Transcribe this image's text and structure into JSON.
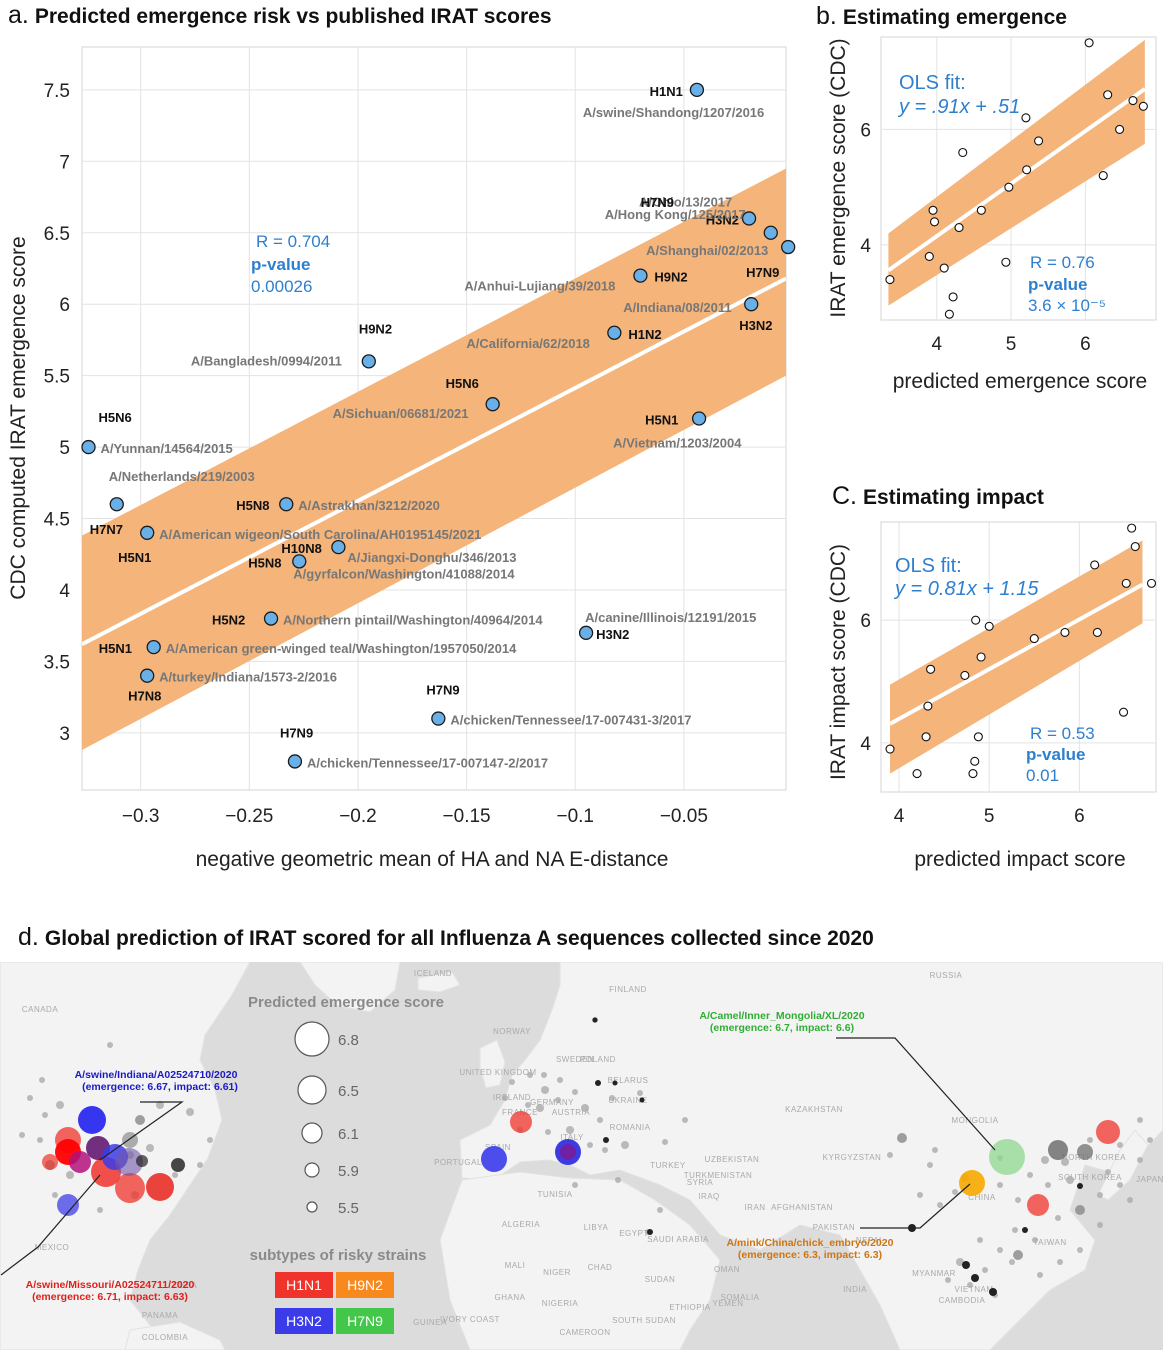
{
  "panel_a": {
    "letter": "a.",
    "title": "Predicted emergence risk vs published IRAT scores",
    "stats": {
      "r": "R = 0.704",
      "pvalue_label": "p-value",
      "pvalue": "0.00026"
    }
  },
  "panel_b": {
    "letter": "b.",
    "title": "Estimating emergence",
    "ols_title": "OLS fit:",
    "ols_eq": "y = .91x + .51",
    "stats": {
      "r": "R = 0.76",
      "pvalue_label": "p-value",
      "pvalue": "3.6 × 10⁻⁵"
    }
  },
  "panel_c": {
    "letter": "C.",
    "title": "Estimating impact",
    "ols_title": "OLS fit:",
    "ols_eq": "y = 0.81x + 1.15",
    "stats": {
      "r": "R = 0.53",
      "pvalue_label": "p-value",
      "pvalue": "0.01"
    }
  },
  "panel_d": {
    "letter": "d.",
    "title": "Global prediction of IRAT scored for all Influenza A sequences collected since 2020",
    "size_legend_title": "Predicted emergence score",
    "size_legend": [
      "6.8",
      "6.5",
      "6.1",
      "5.9",
      "5.5"
    ],
    "subtype_legend_title": "subtypes of risky strains",
    "subtypes": [
      {
        "name": "H1N1",
        "color": "#f0332b"
      },
      {
        "name": "H9N2",
        "color": "#f7891e"
      },
      {
        "name": "H3N2",
        "color": "#3b3bea"
      },
      {
        "name": "H7N9",
        "color": "#43c64a"
      }
    ],
    "annotations": [
      {
        "name": "A/swine/Indiana/A02524710/2020",
        "detail": "(emergence: 6.67, impact: 6.61)",
        "color": "#1a1ac8"
      },
      {
        "name": "A/swine/Missouri/A02524711/2020",
        "detail": "(emergence: 6.71, impact: 6.63)",
        "color": "#e0201a"
      },
      {
        "name": "A/Camel/Inner_Mongolia/XL/2020",
        "detail": "(emergence: 6.7, impact: 6.6)",
        "color": "#2fae34"
      },
      {
        "name": "A/mink/China/chick_embryo/2020",
        "detail": "(emergence: 6.3, impact: 6.3)",
        "color": "#d07410"
      }
    ],
    "countries": [
      "CANADA",
      "ICELAND",
      "FINLAND",
      "SWEDEN",
      "NORWAY",
      "RUSSIA",
      "UNITED KINGDOM",
      "IRELAND",
      "POLAND",
      "BELARUS",
      "UKRAINE",
      "FRANCE",
      "GERMANY",
      "AUSTRIA",
      "ROMANIA",
      "SPAIN",
      "PORTUGAL",
      "ITALY",
      "TURKEY",
      "KAZAKHSTAN",
      "MONGOLIA",
      "UZBEKISTAN",
      "TURKMENISTAN",
      "KYRGYZSTAN",
      "TUNISIA",
      "SYRIA",
      "IRAQ",
      "IRAN",
      "AFGHANISTAN",
      "PAKISTAN",
      "CHINA",
      "NORTH KOREA",
      "SOUTH KOREA",
      "JAPAN",
      "NEPAL",
      "ALGERIA",
      "LIBYA",
      "EGYPT",
      "SAUDI ARABIA",
      "OMAN",
      "INDIA",
      "MYANMAR",
      "TAIWAN",
      "VIETNAM",
      "CAMBODIA",
      "MEXICO",
      "SUDAN",
      "ETHIOPIA",
      "SOMALIA",
      "SOUTH SUDAN",
      "IVORY COAST",
      "CAMEROON",
      "GUINEA",
      "COLOMBIA",
      "PANAMA",
      "CUBA",
      "MALI",
      "NIGER",
      "NIGERIA",
      "CHAD",
      "YEMEN",
      "GHANA"
    ]
  },
  "chart_data": [
    {
      "panel": "a",
      "type": "scatter",
      "title": "Predicted emergence risk vs published IRAT scores",
      "xlabel": "negative geometric mean of HA and NA E-distance",
      "ylabel": "CDC computed IRAT emergence score",
      "xlim": [
        -0.327,
        -0.003
      ],
      "ylim": [
        2.6,
        7.8
      ],
      "xticks": [
        -0.3,
        -0.25,
        -0.2,
        -0.15,
        -0.1,
        -0.05
      ],
      "xtick_labels": [
        "−0.3",
        "−0.25",
        "−0.2",
        "−0.15",
        "−0.1",
        "−0.05"
      ],
      "yticks": [
        3,
        3.5,
        4,
        4.5,
        5,
        5.5,
        6,
        6.5,
        7,
        7.5
      ],
      "ytick_labels": [
        "3",
        "3.5",
        "4",
        "4.5",
        "5",
        "5.5",
        "6",
        "6.5",
        "7",
        "7.5"
      ],
      "grid": true,
      "fit": {
        "x": [
          -0.327,
          -0.003
        ],
        "y": [
          3.62,
          6.18
        ]
      },
      "band": {
        "x": [
          -0.327,
          -0.003
        ],
        "upper": [
          4.38,
          6.95
        ],
        "lower": [
          2.88,
          5.5
        ]
      },
      "points": [
        {
          "x": -0.044,
          "y": 7.5,
          "subtype": "H1N1",
          "strain": "A/swine/Shandong/1207/2016"
        },
        {
          "x": -0.02,
          "y": 6.6,
          "subtype": "H3N2",
          "strain": "A/Ohio/13/2017"
        },
        {
          "x": -0.01,
          "y": 6.5,
          "subtype": "H7N9",
          "strain": "A/Hong Kong/125/2017"
        },
        {
          "x": -0.002,
          "y": 6.4,
          "subtype": "H7N9",
          "strain": "A/Shanghai/02/2013"
        },
        {
          "x": -0.07,
          "y": 6.2,
          "subtype": "H9N2",
          "strain": "A/Anhui-Lujiang/39/2018"
        },
        {
          "x": -0.019,
          "y": 6.0,
          "subtype": "H3N2",
          "strain": "A/Indiana/08/2011"
        },
        {
          "x": -0.082,
          "y": 5.8,
          "subtype": "H1N2",
          "strain": "A/California/62/2018"
        },
        {
          "x": -0.195,
          "y": 5.6,
          "subtype": "H9N2",
          "strain": "A/Bangladesh/0994/2011"
        },
        {
          "x": -0.138,
          "y": 5.3,
          "subtype": "H5N6",
          "strain": "A/Sichuan/06681/2021"
        },
        {
          "x": -0.043,
          "y": 5.2,
          "subtype": "H5N1",
          "strain": "A/Vietnam/1203/2004"
        },
        {
          "x": -0.324,
          "y": 5.0,
          "subtype": "H5N6",
          "strain": "A/Yunnan/14564/2015"
        },
        {
          "x": -0.311,
          "y": 4.6,
          "subtype": "H7N7",
          "strain": "A/Netherlands/219/2003"
        },
        {
          "x": -0.233,
          "y": 4.6,
          "subtype": "H5N8",
          "strain": "A/Astrakhan/3212/2020"
        },
        {
          "x": -0.297,
          "y": 4.4,
          "subtype": "H5N1",
          "strain": "A/American wigeon/South Carolina/AH0195145/2021"
        },
        {
          "x": -0.209,
          "y": 4.3,
          "subtype": "H10N8",
          "strain": "A/Jiangxi-Donghu/346/2013"
        },
        {
          "x": -0.227,
          "y": 4.2,
          "subtype": "H5N8",
          "strain": "A/gyrfalcon/Washington/41088/2014"
        },
        {
          "x": -0.24,
          "y": 3.8,
          "subtype": "H5N2",
          "strain": "A/Northern pintail/Washington/40964/2014"
        },
        {
          "x": -0.095,
          "y": 3.7,
          "subtype": "H3N2",
          "strain": "A/canine/Illinois/12191/2015"
        },
        {
          "x": -0.294,
          "y": 3.6,
          "subtype": "H5N1",
          "strain": "A/American green-winged teal/Washington/1957050/2014"
        },
        {
          "x": -0.297,
          "y": 3.4,
          "subtype": "H7N8",
          "strain": "A/turkey/Indiana/1573-2/2016"
        },
        {
          "x": -0.163,
          "y": 3.1,
          "subtype": "H7N9",
          "strain": "A/chicken/Tennessee/17-007431-3/2017"
        },
        {
          "x": -0.229,
          "y": 2.8,
          "subtype": "H7N9",
          "strain": "A/chicken/Tennessee/17-007147-2/2017"
        }
      ]
    },
    {
      "panel": "b",
      "type": "scatter",
      "title": "Estimating emergence",
      "xlabel": "predicted emergence score",
      "ylabel": "IRAT emergence score (CDC)",
      "xlim": [
        3.25,
        6.95
      ],
      "ylim": [
        2.7,
        7.6
      ],
      "xticks": [
        4,
        5,
        6
      ],
      "yticks": [
        4,
        6
      ],
      "grid": true,
      "fit": {
        "x": [
          3.35,
          6.8
        ],
        "y": [
          3.56,
          6.7
        ]
      },
      "band": {
        "x": [
          3.35,
          6.8
        ],
        "upper": [
          4.2,
          7.55
        ],
        "lower": [
          2.95,
          5.75
        ]
      },
      "x": [
        3.37,
        4.35,
        3.95,
        3.9,
        3.97,
        4.3,
        4.6,
        4.93,
        4.97,
        5.2,
        5.21,
        5.37,
        6.05,
        6.24,
        6.3,
        6.46,
        6.64,
        6.78,
        4.22,
        4.1,
        4.17
      ],
      "y": [
        3.4,
        5.6,
        4.6,
        3.8,
        4.4,
        4.3,
        4.6,
        3.7,
        5.0,
        6.2,
        5.3,
        5.8,
        7.5,
        5.2,
        6.6,
        6.0,
        6.5,
        6.4,
        3.1,
        3.6,
        2.8
      ]
    },
    {
      "panel": "c",
      "type": "scatter",
      "title": "Estimating impact",
      "xlabel": "predicted impact score",
      "ylabel": "IRAT impact score (CDC)",
      "xlim": [
        3.8,
        6.85
      ],
      "ylim": [
        3.2,
        7.6
      ],
      "xticks": [
        4,
        5,
        6
      ],
      "yticks": [
        4,
        6
      ],
      "grid": true,
      "fit": {
        "x": [
          3.9,
          6.7
        ],
        "y": [
          4.31,
          6.58
        ]
      },
      "band": {
        "x": [
          3.9,
          6.7
        ],
        "upper": [
          4.95,
          7.3
        ],
        "lower": [
          3.5,
          5.95
        ]
      },
      "x": [
        3.9,
        4.2,
        4.3,
        4.35,
        4.32,
        4.73,
        4.82,
        4.84,
        4.88,
        4.85,
        4.91,
        5.0,
        5.5,
        5.84,
        6.2,
        6.17,
        6.52,
        6.58,
        6.62,
        6.49,
        6.8
      ],
      "y": [
        3.9,
        3.5,
        4.1,
        5.2,
        4.6,
        5.1,
        3.5,
        3.7,
        4.1,
        6.0,
        5.4,
        5.9,
        5.7,
        5.8,
        5.8,
        6.9,
        6.6,
        7.5,
        7.2,
        4.5,
        6.6
      ]
    }
  ]
}
